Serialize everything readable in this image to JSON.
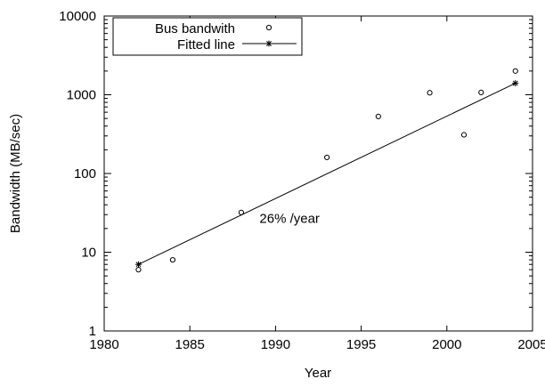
{
  "chart_data": {
    "type": "scatter",
    "title": "",
    "xlabel": "Year",
    "ylabel": "Bandwidth (MB/sec)",
    "xlim": [
      1980,
      2005
    ],
    "ylim": [
      1,
      10000
    ],
    "y_scale": "log",
    "grid": false,
    "legend_position": "top-left",
    "x_ticks": [
      1980,
      1985,
      1990,
      1995,
      2000,
      2005
    ],
    "x_tick_labels": [
      "1980",
      "1985",
      "1990",
      "1995",
      "2000",
      "2005"
    ],
    "y_ticks": [
      1,
      10,
      100,
      1000,
      10000
    ],
    "y_tick_labels": [
      "1",
      "10",
      "100",
      "1000",
      "10000"
    ],
    "series": [
      {
        "name": "Bus bandwith",
        "marker": "circle",
        "x": [
          1982,
          1984,
          1988,
          1993,
          1996,
          1999,
          2001,
          2002,
          2004
        ],
        "y": [
          6,
          8,
          32,
          160,
          530,
          1060,
          310,
          1070,
          2000
        ]
      },
      {
        "name": "Fitted line",
        "marker": "asterisk",
        "line": true,
        "x": [
          1982,
          2004
        ],
        "y": [
          7,
          1400
        ]
      }
    ],
    "annotations": [
      {
        "text": "26% /year",
        "x": 1990,
        "y": 27
      }
    ]
  }
}
